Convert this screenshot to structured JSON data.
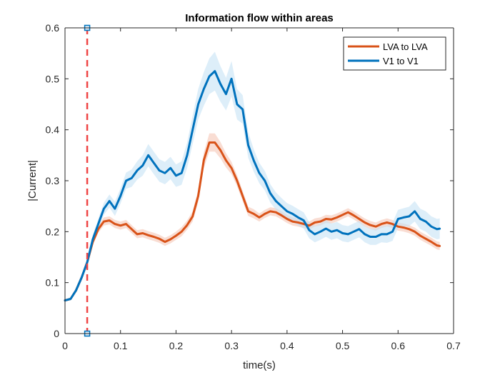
{
  "chart_data": {
    "type": "line",
    "title": "Information flow within areas",
    "xlabel": "time(s)",
    "ylabel": "|Current|",
    "xlim": [
      0,
      0.7
    ],
    "ylim": [
      0,
      0.6
    ],
    "xticks": [
      0,
      0.1,
      0.2,
      0.3,
      0.4,
      0.5,
      0.6,
      0.7
    ],
    "xtick_labels": [
      "0",
      "0.1",
      "0.2",
      "0.3",
      "0.4",
      "0.5",
      "0.6",
      "0.7"
    ],
    "yticks": [
      0,
      0.1,
      0.2,
      0.3,
      0.4,
      0.5,
      0.6
    ],
    "ytick_labels": [
      "0",
      "0.1",
      "0.2",
      "0.3",
      "0.4",
      "0.5",
      "0.6"
    ],
    "grid": false,
    "legend_position": "top-right",
    "series": [
      {
        "name": "LVA to LVA",
        "color": "#D95319",
        "band_color": "#F5C6B5",
        "x": [
          0,
          0.01,
          0.02,
          0.03,
          0.04,
          0.05,
          0.06,
          0.07,
          0.08,
          0.09,
          0.1,
          0.11,
          0.12,
          0.13,
          0.14,
          0.15,
          0.16,
          0.17,
          0.18,
          0.19,
          0.2,
          0.21,
          0.22,
          0.23,
          0.24,
          0.25,
          0.26,
          0.27,
          0.28,
          0.29,
          0.3,
          0.31,
          0.32,
          0.33,
          0.34,
          0.35,
          0.36,
          0.37,
          0.38,
          0.39,
          0.4,
          0.41,
          0.42,
          0.43,
          0.44,
          0.45,
          0.46,
          0.47,
          0.48,
          0.49,
          0.5,
          0.51,
          0.52,
          0.53,
          0.54,
          0.55,
          0.56,
          0.57,
          0.58,
          0.59,
          0.6,
          0.61,
          0.62,
          0.63,
          0.64,
          0.65,
          0.66,
          0.67,
          0.675
        ],
        "values": [
          0.065,
          0.068,
          0.085,
          0.11,
          0.14,
          0.18,
          0.205,
          0.22,
          0.222,
          0.215,
          0.212,
          0.215,
          0.205,
          0.195,
          0.197,
          0.193,
          0.19,
          0.186,
          0.18,
          0.185,
          0.192,
          0.2,
          0.213,
          0.23,
          0.27,
          0.34,
          0.375,
          0.375,
          0.36,
          0.34,
          0.325,
          0.3,
          0.27,
          0.24,
          0.235,
          0.228,
          0.235,
          0.24,
          0.238,
          0.232,
          0.225,
          0.22,
          0.218,
          0.215,
          0.212,
          0.218,
          0.22,
          0.225,
          0.224,
          0.228,
          0.233,
          0.238,
          0.232,
          0.225,
          0.218,
          0.213,
          0.21,
          0.215,
          0.218,
          0.215,
          0.21,
          0.208,
          0.205,
          0.2,
          0.192,
          0.186,
          0.18,
          0.173,
          0.172
        ],
        "band": [
          0.002,
          0.002,
          0.003,
          0.004,
          0.005,
          0.006,
          0.007,
          0.008,
          0.008,
          0.008,
          0.008,
          0.008,
          0.008,
          0.008,
          0.008,
          0.008,
          0.008,
          0.008,
          0.008,
          0.008,
          0.008,
          0.009,
          0.009,
          0.01,
          0.012,
          0.015,
          0.018,
          0.018,
          0.016,
          0.014,
          0.012,
          0.011,
          0.01,
          0.009,
          0.009,
          0.008,
          0.008,
          0.008,
          0.008,
          0.008,
          0.008,
          0.008,
          0.008,
          0.008,
          0.008,
          0.008,
          0.008,
          0.008,
          0.008,
          0.008,
          0.008,
          0.008,
          0.008,
          0.008,
          0.008,
          0.008,
          0.008,
          0.008,
          0.008,
          0.008,
          0.008,
          0.008,
          0.008,
          0.008,
          0.008,
          0.008,
          0.008,
          0.008,
          0.008
        ]
      },
      {
        "name": "V1 to V1",
        "color": "#0072BD",
        "band_color": "#C6E2F5",
        "x": [
          0,
          0.01,
          0.02,
          0.03,
          0.04,
          0.05,
          0.06,
          0.07,
          0.08,
          0.09,
          0.1,
          0.11,
          0.12,
          0.13,
          0.14,
          0.15,
          0.16,
          0.17,
          0.18,
          0.19,
          0.2,
          0.21,
          0.22,
          0.23,
          0.24,
          0.25,
          0.26,
          0.27,
          0.28,
          0.29,
          0.3,
          0.31,
          0.32,
          0.33,
          0.34,
          0.35,
          0.36,
          0.37,
          0.38,
          0.39,
          0.4,
          0.41,
          0.42,
          0.43,
          0.44,
          0.45,
          0.46,
          0.47,
          0.48,
          0.49,
          0.5,
          0.51,
          0.52,
          0.53,
          0.54,
          0.55,
          0.56,
          0.57,
          0.58,
          0.59,
          0.6,
          0.61,
          0.62,
          0.63,
          0.64,
          0.65,
          0.66,
          0.67,
          0.675
        ],
        "values": [
          0.065,
          0.068,
          0.085,
          0.11,
          0.14,
          0.185,
          0.215,
          0.245,
          0.26,
          0.245,
          0.27,
          0.3,
          0.305,
          0.32,
          0.33,
          0.35,
          0.335,
          0.32,
          0.315,
          0.325,
          0.31,
          0.315,
          0.35,
          0.4,
          0.45,
          0.48,
          0.505,
          0.515,
          0.49,
          0.47,
          0.5,
          0.45,
          0.44,
          0.37,
          0.34,
          0.315,
          0.3,
          0.275,
          0.26,
          0.25,
          0.24,
          0.235,
          0.228,
          0.222,
          0.203,
          0.195,
          0.2,
          0.206,
          0.2,
          0.203,
          0.197,
          0.195,
          0.2,
          0.205,
          0.195,
          0.19,
          0.19,
          0.195,
          0.195,
          0.2,
          0.225,
          0.228,
          0.23,
          0.24,
          0.225,
          0.22,
          0.21,
          0.205,
          0.206
        ],
        "band": [
          0.002,
          0.002,
          0.003,
          0.004,
          0.006,
          0.008,
          0.01,
          0.012,
          0.013,
          0.014,
          0.015,
          0.016,
          0.017,
          0.018,
          0.02,
          0.022,
          0.022,
          0.022,
          0.022,
          0.022,
          0.022,
          0.023,
          0.025,
          0.028,
          0.03,
          0.033,
          0.035,
          0.038,
          0.035,
          0.032,
          0.035,
          0.03,
          0.028,
          0.025,
          0.022,
          0.02,
          0.019,
          0.018,
          0.017,
          0.016,
          0.016,
          0.016,
          0.016,
          0.016,
          0.016,
          0.016,
          0.016,
          0.016,
          0.016,
          0.016,
          0.016,
          0.016,
          0.016,
          0.016,
          0.016,
          0.016,
          0.016,
          0.016,
          0.017,
          0.018,
          0.018,
          0.018,
          0.019,
          0.02,
          0.02,
          0.02,
          0.02,
          0.02,
          0.02
        ]
      }
    ],
    "annotations": [
      {
        "type": "vertical-dashed-line",
        "x": 0.04,
        "y_range": [
          0,
          0.6
        ],
        "color": "#EF4444",
        "endpoint_marker_color": "#0072BD"
      }
    ]
  }
}
